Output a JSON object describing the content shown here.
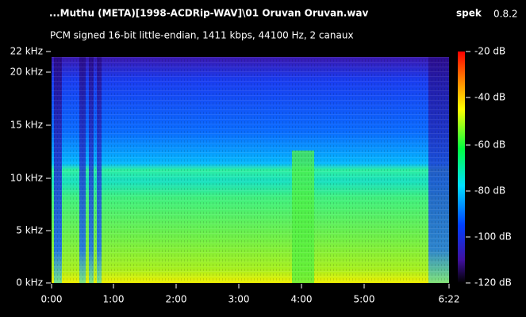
{
  "header": {
    "title": "...Muthu (META)[1998-ACDRip-WAV]\\01 Oruvan Oruvan.wav",
    "app": "spek",
    "version": "0.8.2",
    "subtitle": "PCM signed 16-bit little-endian, 1411 kbps, 44100 Hz, 2 canaux"
  },
  "frequency_axis": [
    "0 kHz",
    "5 kHz",
    "10 kHz",
    "15 kHz",
    "20 kHz",
    "22 kHz"
  ],
  "time_axis": [
    "0:00",
    "1:00",
    "2:00",
    "3:00",
    "4:00",
    "5:00",
    "6:22"
  ],
  "level_axis": [
    "-20 dB",
    "-40 dB",
    "-60 dB",
    "-80 dB",
    "-100 dB",
    "-120 dB"
  ]
}
